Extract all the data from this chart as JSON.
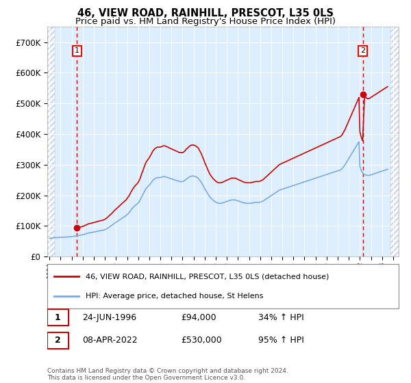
{
  "title1": "46, VIEW ROAD, RAINHILL, PRESCOT, L35 0LS",
  "title2": "Price paid vs. HM Land Registry's House Price Index (HPI)",
  "ylim": [
    0,
    750000
  ],
  "yticks": [
    0,
    100000,
    200000,
    300000,
    400000,
    500000,
    600000,
    700000
  ],
  "ytick_labels": [
    "£0",
    "£100K",
    "£200K",
    "£300K",
    "£400K",
    "£500K",
    "£600K",
    "£700K"
  ],
  "xlim_start": 1993.8,
  "xlim_end": 2025.5,
  "hpi_x": [
    1994.0,
    1994.08,
    1994.17,
    1994.25,
    1994.33,
    1994.42,
    1994.5,
    1994.58,
    1994.67,
    1994.75,
    1994.83,
    1994.92,
    1995.0,
    1995.08,
    1995.17,
    1995.25,
    1995.33,
    1995.42,
    1995.5,
    1995.58,
    1995.67,
    1995.75,
    1995.83,
    1995.92,
    1996.0,
    1996.08,
    1996.17,
    1996.25,
    1996.33,
    1996.42,
    1996.5,
    1996.58,
    1996.67,
    1996.75,
    1996.83,
    1996.92,
    1997.0,
    1997.08,
    1997.17,
    1997.25,
    1997.33,
    1997.42,
    1997.5,
    1997.58,
    1997.67,
    1997.75,
    1997.83,
    1997.92,
    1998.0,
    1998.08,
    1998.17,
    1998.25,
    1998.33,
    1998.42,
    1998.5,
    1998.58,
    1998.67,
    1998.75,
    1998.83,
    1998.92,
    1999.0,
    1999.08,
    1999.17,
    1999.25,
    1999.33,
    1999.42,
    1999.5,
    1999.58,
    1999.67,
    1999.75,
    1999.83,
    1999.92,
    2000.0,
    2000.08,
    2000.17,
    2000.25,
    2000.33,
    2000.42,
    2000.5,
    2000.58,
    2000.67,
    2000.75,
    2000.83,
    2000.92,
    2001.0,
    2001.08,
    2001.17,
    2001.25,
    2001.33,
    2001.42,
    2001.5,
    2001.58,
    2001.67,
    2001.75,
    2001.83,
    2001.92,
    2002.0,
    2002.08,
    2002.17,
    2002.25,
    2002.33,
    2002.42,
    2002.5,
    2002.58,
    2002.67,
    2002.75,
    2002.83,
    2002.92,
    2003.0,
    2003.08,
    2003.17,
    2003.25,
    2003.33,
    2003.42,
    2003.5,
    2003.58,
    2003.67,
    2003.75,
    2003.83,
    2003.92,
    2004.0,
    2004.08,
    2004.17,
    2004.25,
    2004.33,
    2004.42,
    2004.5,
    2004.58,
    2004.67,
    2004.75,
    2004.83,
    2004.92,
    2005.0,
    2005.08,
    2005.17,
    2005.25,
    2005.33,
    2005.42,
    2005.5,
    2005.58,
    2005.67,
    2005.75,
    2005.83,
    2005.92,
    2006.0,
    2006.08,
    2006.17,
    2006.25,
    2006.33,
    2006.42,
    2006.5,
    2006.58,
    2006.67,
    2006.75,
    2006.83,
    2006.92,
    2007.0,
    2007.08,
    2007.17,
    2007.25,
    2007.33,
    2007.42,
    2007.5,
    2007.58,
    2007.67,
    2007.75,
    2007.83,
    2007.92,
    2008.0,
    2008.08,
    2008.17,
    2008.25,
    2008.33,
    2008.42,
    2008.5,
    2008.58,
    2008.67,
    2008.75,
    2008.83,
    2008.92,
    2009.0,
    2009.08,
    2009.17,
    2009.25,
    2009.33,
    2009.42,
    2009.5,
    2009.58,
    2009.67,
    2009.75,
    2009.83,
    2009.92,
    2010.0,
    2010.08,
    2010.17,
    2010.25,
    2010.33,
    2010.42,
    2010.5,
    2010.58,
    2010.67,
    2010.75,
    2010.83,
    2010.92,
    2011.0,
    2011.08,
    2011.17,
    2011.25,
    2011.33,
    2011.42,
    2011.5,
    2011.58,
    2011.67,
    2011.75,
    2011.83,
    2011.92,
    2012.0,
    2012.08,
    2012.17,
    2012.25,
    2012.33,
    2012.42,
    2012.5,
    2012.58,
    2012.67,
    2012.75,
    2012.83,
    2012.92,
    2013.0,
    2013.08,
    2013.17,
    2013.25,
    2013.33,
    2013.42,
    2013.5,
    2013.58,
    2013.67,
    2013.75,
    2013.83,
    2013.92,
    2014.0,
    2014.08,
    2014.17,
    2014.25,
    2014.33,
    2014.42,
    2014.5,
    2014.58,
    2014.67,
    2014.75,
    2014.83,
    2014.92,
    2015.0,
    2015.08,
    2015.17,
    2015.25,
    2015.33,
    2015.42,
    2015.5,
    2015.58,
    2015.67,
    2015.75,
    2015.83,
    2015.92,
    2016.0,
    2016.08,
    2016.17,
    2016.25,
    2016.33,
    2016.42,
    2016.5,
    2016.58,
    2016.67,
    2016.75,
    2016.83,
    2016.92,
    2017.0,
    2017.08,
    2017.17,
    2017.25,
    2017.33,
    2017.42,
    2017.5,
    2017.58,
    2017.67,
    2017.75,
    2017.83,
    2017.92,
    2018.0,
    2018.08,
    2018.17,
    2018.25,
    2018.33,
    2018.42,
    2018.5,
    2018.58,
    2018.67,
    2018.75,
    2018.83,
    2018.92,
    2019.0,
    2019.08,
    2019.17,
    2019.25,
    2019.33,
    2019.42,
    2019.5,
    2019.58,
    2019.67,
    2019.75,
    2019.83,
    2019.92,
    2020.0,
    2020.08,
    2020.17,
    2020.25,
    2020.33,
    2020.42,
    2020.5,
    2020.58,
    2020.67,
    2020.75,
    2020.83,
    2020.92,
    2021.0,
    2021.08,
    2021.17,
    2021.25,
    2021.33,
    2021.42,
    2021.5,
    2021.58,
    2021.67,
    2021.75,
    2021.83,
    2021.92,
    2022.0,
    2022.08,
    2022.17,
    2022.25,
    2022.33,
    2022.42,
    2022.5,
    2022.58,
    2022.67,
    2022.75,
    2022.83,
    2022.92,
    2023.0,
    2023.08,
    2023.17,
    2023.25,
    2023.33,
    2023.42,
    2023.5,
    2023.58,
    2023.67,
    2023.75,
    2023.83,
    2023.92,
    2024.0,
    2024.08,
    2024.17,
    2024.25,
    2024.33,
    2024.42,
    2024.5
  ],
  "hpi_y": [
    60000,
    60200,
    60500,
    61000,
    61300,
    61500,
    61700,
    62000,
    62200,
    62400,
    62600,
    62800,
    63000,
    63100,
    63200,
    63300,
    63400,
    63500,
    63700,
    64000,
    64200,
    64500,
    64700,
    64900,
    65000,
    65500,
    66000,
    66500,
    67000,
    67500,
    68000,
    68500,
    69000,
    69500,
    70000,
    70500,
    71000,
    72000,
    73000,
    74000,
    75000,
    76000,
    77000,
    77500,
    78000,
    78500,
    79000,
    79500,
    80000,
    80800,
    81500,
    82000,
    82800,
    83500,
    84000,
    84500,
    85000,
    85500,
    86000,
    87000,
    88000,
    89500,
    91000,
    93000,
    95000,
    97000,
    99000,
    101000,
    103000,
    105500,
    108000,
    110000,
    112000,
    114000,
    116000,
    118000,
    120000,
    122000,
    124000,
    126000,
    128000,
    130000,
    132000,
    134000,
    137000,
    140000,
    143000,
    147000,
    151000,
    155000,
    159000,
    162000,
    165000,
    168000,
    170000,
    172000,
    175000,
    179000,
    184000,
    190000,
    196000,
    202000,
    208000,
    214000,
    220000,
    224000,
    227000,
    230000,
    233000,
    237000,
    241000,
    245000,
    249000,
    252000,
    254000,
    256000,
    257000,
    258000,
    258000,
    258000,
    258000,
    259000,
    260000,
    261000,
    261000,
    261000,
    260000,
    259000,
    258000,
    257000,
    256000,
    255000,
    254000,
    253000,
    252000,
    251000,
    250000,
    249000,
    248000,
    247000,
    246000,
    245000,
    245000,
    245000,
    245000,
    246000,
    248000,
    250000,
    253000,
    255000,
    257000,
    259000,
    261000,
    262000,
    263000,
    263000,
    263000,
    262000,
    261000,
    260000,
    258000,
    256000,
    252000,
    248000,
    244000,
    239000,
    234000,
    228000,
    222000,
    217000,
    212000,
    207000,
    202000,
    197000,
    193000,
    190000,
    187000,
    184000,
    182000,
    180000,
    178000,
    176000,
    175000,
    174000,
    174000,
    174000,
    174000,
    175000,
    176000,
    177000,
    178000,
    179000,
    180000,
    181000,
    182000,
    183000,
    184000,
    185000,
    185000,
    185000,
    185000,
    185000,
    184000,
    183000,
    182000,
    181000,
    180000,
    179000,
    178000,
    177000,
    176000,
    175000,
    175000,
    174000,
    174000,
    174000,
    174000,
    174000,
    174000,
    175000,
    175000,
    176000,
    176000,
    177000,
    177000,
    177000,
    177000,
    177000,
    178000,
    179000,
    180000,
    181000,
    183000,
    185000,
    187000,
    189000,
    191000,
    193000,
    195000,
    197000,
    199000,
    201000,
    203000,
    205000,
    207000,
    209000,
    211000,
    213000,
    215000,
    217000,
    218000,
    219000,
    220000,
    221000,
    222000,
    223000,
    224000,
    225000,
    226000,
    227000,
    228000,
    229000,
    230000,
    231000,
    232000,
    233000,
    234000,
    235000,
    236000,
    237000,
    238000,
    239000,
    240000,
    241000,
    242000,
    243000,
    244000,
    245000,
    246000,
    247000,
    248000,
    249000,
    250000,
    251000,
    252000,
    253000,
    254000,
    255000,
    256000,
    257000,
    258000,
    259000,
    260000,
    261000,
    262000,
    263000,
    264000,
    265000,
    266000,
    267000,
    268000,
    269000,
    270000,
    271000,
    272000,
    273000,
    274000,
    275000,
    276000,
    277000,
    278000,
    279000,
    280000,
    281000,
    282000,
    283000,
    285000,
    288000,
    292000,
    296000,
    300000,
    305000,
    310000,
    315000,
    320000,
    325000,
    330000,
    335000,
    340000,
    345000,
    350000,
    355000,
    360000,
    365000,
    370000,
    375000,
    295000,
    285000,
    278000,
    273000,
    270000,
    268000,
    267000,
    266000,
    265000,
    265000,
    265000,
    266000,
    267000,
    268000,
    269000,
    270000,
    271000,
    272000,
    273000,
    274000,
    275000,
    276000,
    277000,
    278000,
    279000,
    280000,
    281000,
    282000,
    283000,
    284000,
    285000
  ],
  "sale1_year": 1996.48,
  "sale1_value": 94000,
  "sale2_year": 2022.27,
  "sale2_value": 530000,
  "legend_line1": "46, VIEW ROAD, RAINHILL, PRESCOT, L35 0LS (detached house)",
  "legend_line2": "HPI: Average price, detached house, St Helens",
  "table_rows": [
    {
      "num": "1",
      "date": "24-JUN-1996",
      "price": "£94,000",
      "hpi": "34% ↑ HPI"
    },
    {
      "num": "2",
      "date": "08-APR-2022",
      "price": "£530,000",
      "hpi": "95% ↑ HPI"
    }
  ],
  "footnote": "Contains HM Land Registry data © Crown copyright and database right 2024.\nThis data is licensed under the Open Government Licence v3.0.",
  "hpi_line_color": "#7aaadd",
  "property_line_color": "#cc0000",
  "marker_color": "#cc0000",
  "vline_color": "#cc0000",
  "bg_color": "#ddeeff",
  "grid_color": "#ffffff"
}
